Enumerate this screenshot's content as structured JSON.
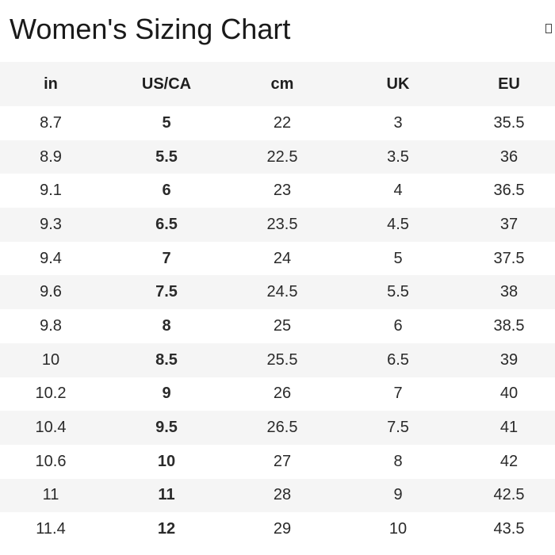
{
  "title": "Women's Sizing Chart",
  "close_glyph": "▯",
  "columns": [
    "in",
    "US/CA",
    "cm",
    "UK",
    "EU"
  ],
  "rows": [
    [
      "8.7",
      "5",
      "22",
      "3",
      "35.5"
    ],
    [
      "8.9",
      "5.5",
      "22.5",
      "3.5",
      "36"
    ],
    [
      "9.1",
      "6",
      "23",
      "4",
      "36.5"
    ],
    [
      "9.3",
      "6.5",
      "23.5",
      "4.5",
      "37"
    ],
    [
      "9.4",
      "7",
      "24",
      "5",
      "37.5"
    ],
    [
      "9.6",
      "7.5",
      "24.5",
      "5.5",
      "38"
    ],
    [
      "9.8",
      "8",
      "25",
      "6",
      "38.5"
    ],
    [
      "10",
      "8.5",
      "25.5",
      "6.5",
      "39"
    ],
    [
      "10.2",
      "9",
      "26",
      "7",
      "40"
    ],
    [
      "10.4",
      "9.5",
      "26.5",
      "7.5",
      "41"
    ],
    [
      "10.6",
      "10",
      "27",
      "8",
      "42"
    ],
    [
      "11",
      "11",
      "28",
      "9",
      "42.5"
    ],
    [
      "11.4",
      "12",
      "29",
      "10",
      "43.5"
    ]
  ],
  "colors": {
    "header_bg": "#f5f5f5",
    "stripe_bg": "#f5f5f5",
    "text": "#222222"
  }
}
